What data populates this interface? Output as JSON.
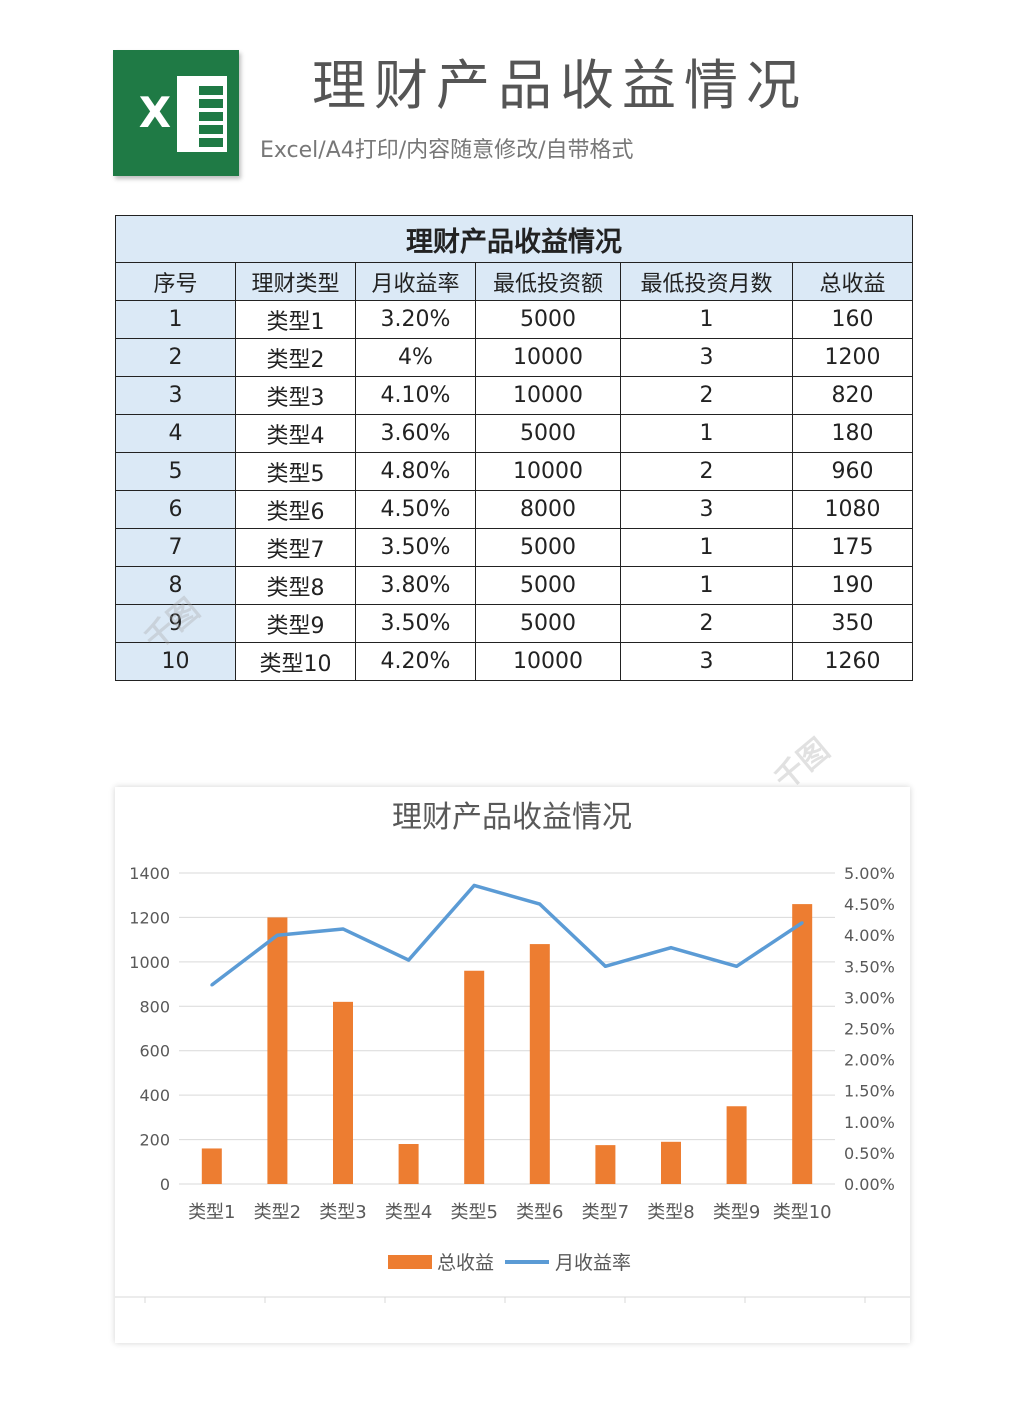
{
  "header": {
    "logo_letter": "X",
    "title": "理财产品收益情况",
    "subtitle": "Excel/A4打印/内容随意修改/自带格式"
  },
  "table": {
    "caption": "理财产品收益情况",
    "columns": [
      "序号",
      "理财类型",
      "月收益率",
      "最低投资额",
      "最低投资月数",
      "总收益"
    ],
    "rows": [
      [
        "1",
        "类型1",
        "3.20%",
        "5000",
        "1",
        "160"
      ],
      [
        "2",
        "类型2",
        "4%",
        "10000",
        "3",
        "1200"
      ],
      [
        "3",
        "类型3",
        "4.10%",
        "10000",
        "2",
        "820"
      ],
      [
        "4",
        "类型4",
        "3.60%",
        "5000",
        "1",
        "180"
      ],
      [
        "5",
        "类型5",
        "4.80%",
        "10000",
        "2",
        "960"
      ],
      [
        "6",
        "类型6",
        "4.50%",
        "8000",
        "3",
        "1080"
      ],
      [
        "7",
        "类型7",
        "3.50%",
        "5000",
        "1",
        "175"
      ],
      [
        "8",
        "类型8",
        "3.80%",
        "5000",
        "1",
        "190"
      ],
      [
        "9",
        "类型9",
        "3.50%",
        "5000",
        "2",
        "350"
      ],
      [
        "10",
        "类型10",
        "4.20%",
        "10000",
        "3",
        "1260"
      ]
    ]
  },
  "chart_data": {
    "type": "bar",
    "title": "理财产品收益情况",
    "categories": [
      "类型1",
      "类型2",
      "类型3",
      "类型4",
      "类型5",
      "类型6",
      "类型7",
      "类型8",
      "类型9",
      "类型10"
    ],
    "series": [
      {
        "name": "总收益",
        "type": "bar",
        "axis": "left",
        "color": "#ed7d31",
        "values": [
          160,
          1200,
          820,
          180,
          960,
          1080,
          175,
          190,
          350,
          1260
        ]
      },
      {
        "name": "月收益率",
        "type": "line",
        "axis": "right",
        "color": "#5b9bd5",
        "values": [
          0.032,
          0.04,
          0.041,
          0.036,
          0.048,
          0.045,
          0.035,
          0.038,
          0.035,
          0.042
        ]
      }
    ],
    "y_left": {
      "min": 0,
      "max": 1400,
      "ticks": [
        "0",
        "200",
        "400",
        "600",
        "800",
        "1000",
        "1200",
        "1400"
      ]
    },
    "y_right": {
      "min": 0,
      "max": 0.05,
      "ticks": [
        "0.00%",
        "0.50%",
        "1.00%",
        "1.50%",
        "2.00%",
        "2.50%",
        "3.00%",
        "3.50%",
        "4.00%",
        "4.50%",
        "5.00%"
      ]
    },
    "grid": true,
    "legend": "bottom"
  },
  "watermark": "千图"
}
